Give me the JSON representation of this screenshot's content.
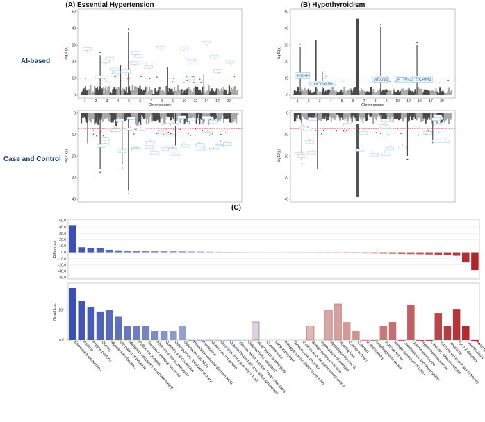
{
  "panels": {
    "a_title": "(A) Essential Hypertension",
    "b_title": "(B) Hypothyroidism",
    "c_title": "(C)",
    "row_ai": "AI-based",
    "row_cc": "Case and Control"
  },
  "manhattan": {
    "ylabel": "-log10(p)",
    "xlabel": "Chromosome",
    "yticks_top": [
      "0",
      "10",
      "20",
      "30",
      "40",
      "50"
    ],
    "yticks_bottom": [
      "0",
      "10",
      "20",
      "30",
      "40"
    ],
    "chrom_ticks": [
      "1",
      "2",
      "3",
      "4",
      "5",
      "6",
      "7",
      "8",
      "9",
      "10",
      "12",
      "14",
      "17",
      "20"
    ],
    "b_top_labels": [
      "FSHR",
      "LINC00856",
      "ATXN2",
      "PTPN2",
      "TICAM1"
    ],
    "threshold_color": "#e0302a"
  },
  "chart_data": {
    "type": "bar",
    "title": "(C)",
    "categories": [
      "Essential hypertension",
      "Asthma",
      "Angina pectoris",
      "Obesity",
      "Myocardial infarction",
      "Ulceration of intestine",
      "Malignant neoplasm of female breast",
      "Reflux esophagitis",
      "Transient cerebral ischemia",
      "Abdominal aortic aneurysm",
      "Gastritis and duodenitis",
      "Osteoporosis, localized primary",
      "Osteoarthrosis NOS",
      "Peripheral vascular disease NOS",
      "Alcoholism",
      "Urinary tract infection",
      "Disorders of iris and ciliary body",
      "Osteoarthropathies and allied syndromes",
      "Valvular heart disease / heart chambers",
      "Osteoarthritis; localized",
      "Heart transplant/surgery",
      "Cholelithiasis",
      "Lung transplant",
      "Allergy/adverse effect of penicillin",
      "Tobacco use disorder",
      "Excessive or frequent menstruation",
      "Benign neoplasm of skin",
      "Hyperplasia of prostate",
      "Hypothyroidism NOS",
      "Hearing loss",
      "Cancer of brain",
      "Cataract",
      "Enthesopathy",
      "Diaphragmatic hernia",
      "Inguinal hernia",
      "Benign neoplasm of colon",
      "Cholelithiasis and cholecystitis",
      "Uterine leiomyoma",
      "Hypercholesterolemia",
      "Coronary atherosclerosis",
      "Varicose veins of lower extremity",
      "Glaucoma",
      "Type 2 diabetes",
      "Diverticulosis",
      "Atrial fibrillation and flutter"
    ],
    "series": [
      {
        "name": "Difference",
        "ylabel": "Difference",
        "ylim": [
          -40,
          50
        ],
        "yticks": [
          "50.0",
          "40.0",
          "30.0",
          "20.0",
          "10.0",
          "0.0",
          "-10.0",
          "-20.0",
          "-30.0",
          "-40.0"
        ],
        "values": [
          43,
          8,
          7,
          6.5,
          4,
          3.2,
          2.8,
          2.5,
          2.3,
          2.1,
          2,
          1.8,
          1.6,
          1.4,
          1.2,
          1,
          0.8,
          0.6,
          0.4,
          0.2,
          0,
          0,
          0,
          0,
          0,
          0,
          0,
          -0.5,
          -0.8,
          -1,
          -1.2,
          -1.5,
          -1.8,
          -2,
          -2.2,
          -2.5,
          -2.8,
          -3,
          -3.2,
          -3.5,
          -4,
          -4.5,
          -5.5,
          -16,
          -28
        ]
      },
      {
        "name": "Novel Loci",
        "ylabel": "Novel Loci",
        "scale": "log",
        "yticks": [
          "10^1",
          "10^0"
        ],
        "values": [
          55,
          20,
          13,
          9,
          10,
          6,
          3,
          3,
          3,
          2,
          2,
          2,
          3,
          1,
          1,
          1,
          1,
          1,
          1,
          1,
          4,
          0,
          0,
          0,
          0,
          0,
          3,
          0,
          10,
          16,
          4,
          2,
          1,
          1,
          3,
          4,
          1,
          15,
          1,
          1,
          8,
          3,
          11,
          3,
          1
        ]
      }
    ]
  },
  "colors": {
    "blue": "#3a4fb0",
    "red": "#b0242a",
    "dark_grey": "#4a4a4a",
    "light_grey": "#a8a8a8",
    "label_box": "#7db3c9"
  }
}
